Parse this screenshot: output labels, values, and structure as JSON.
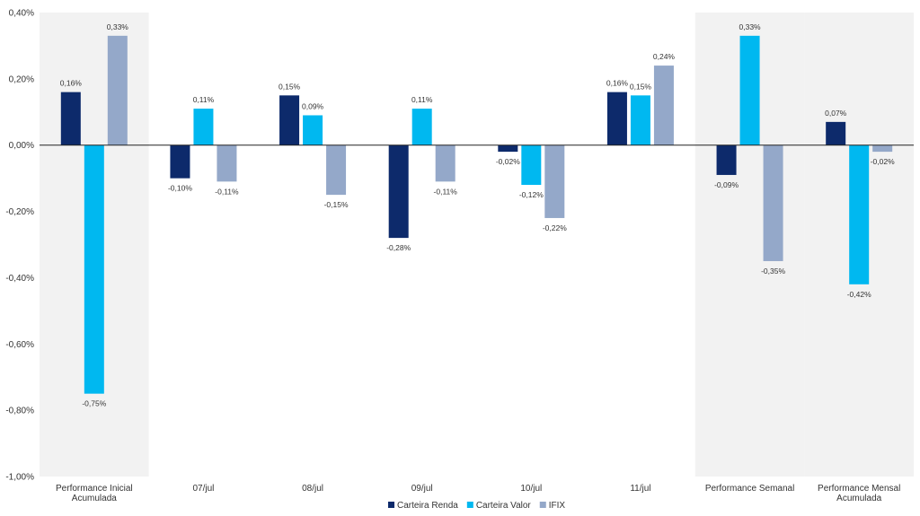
{
  "chart_data": {
    "type": "bar",
    "categories": [
      [
        "Performance Inicial",
        "Acumulada"
      ],
      [
        "07/jul"
      ],
      [
        "08/jul"
      ],
      [
        "09/jul"
      ],
      [
        "10/jul"
      ],
      [
        "11/jul"
      ],
      [
        "Performance Semanal"
      ],
      [
        "Performance Mensal",
        "Acumulada"
      ]
    ],
    "highlighted_categories": [
      0,
      6,
      7
    ],
    "highlight_color": "#f2f2f2",
    "ylim": [
      -1.0,
      0.4
    ],
    "yticks": [
      0.4,
      0.2,
      0.0,
      -0.2,
      -0.4,
      -0.6,
      -0.8,
      -1.0
    ],
    "ytick_labels": [
      "0,40%",
      "0,20%",
      "0,00%",
      "-0,20%",
      "-0,40%",
      "-0,60%",
      "-0,80%",
      "-1,00%"
    ],
    "series": [
      {
        "name": "Carteira Renda",
        "color": "#0d2a6b",
        "values": [
          0.16,
          -0.1,
          0.15,
          -0.28,
          -0.02,
          0.16,
          -0.09,
          0.07
        ],
        "labels": [
          "0,16%",
          "-0,10%",
          "0,15%",
          "-0,28%",
          "-0,02%",
          "0,16%",
          "-0,09%",
          "0,07%"
        ]
      },
      {
        "name": "Carteira Valor",
        "color": "#00b8f0",
        "values": [
          -0.75,
          0.11,
          0.09,
          0.11,
          -0.12,
          0.15,
          0.33,
          -0.42
        ],
        "labels": [
          "-0,75%",
          "0,11%",
          "0,09%",
          "0,11%",
          "-0,12%",
          "0,15%",
          "0,33%",
          "-0,42%"
        ]
      },
      {
        "name": "IFIX",
        "color": "#94a8c9",
        "values": [
          0.33,
          -0.11,
          -0.15,
          -0.11,
          -0.22,
          0.24,
          -0.35,
          -0.02
        ],
        "labels": [
          "0,33%",
          "-0,11%",
          "-0,15%",
          "-0,11%",
          "-0,22%",
          "0,24%",
          "-0,35%",
          "-0,02%"
        ]
      }
    ],
    "legend_position": "bottom-center",
    "grid": false
  }
}
